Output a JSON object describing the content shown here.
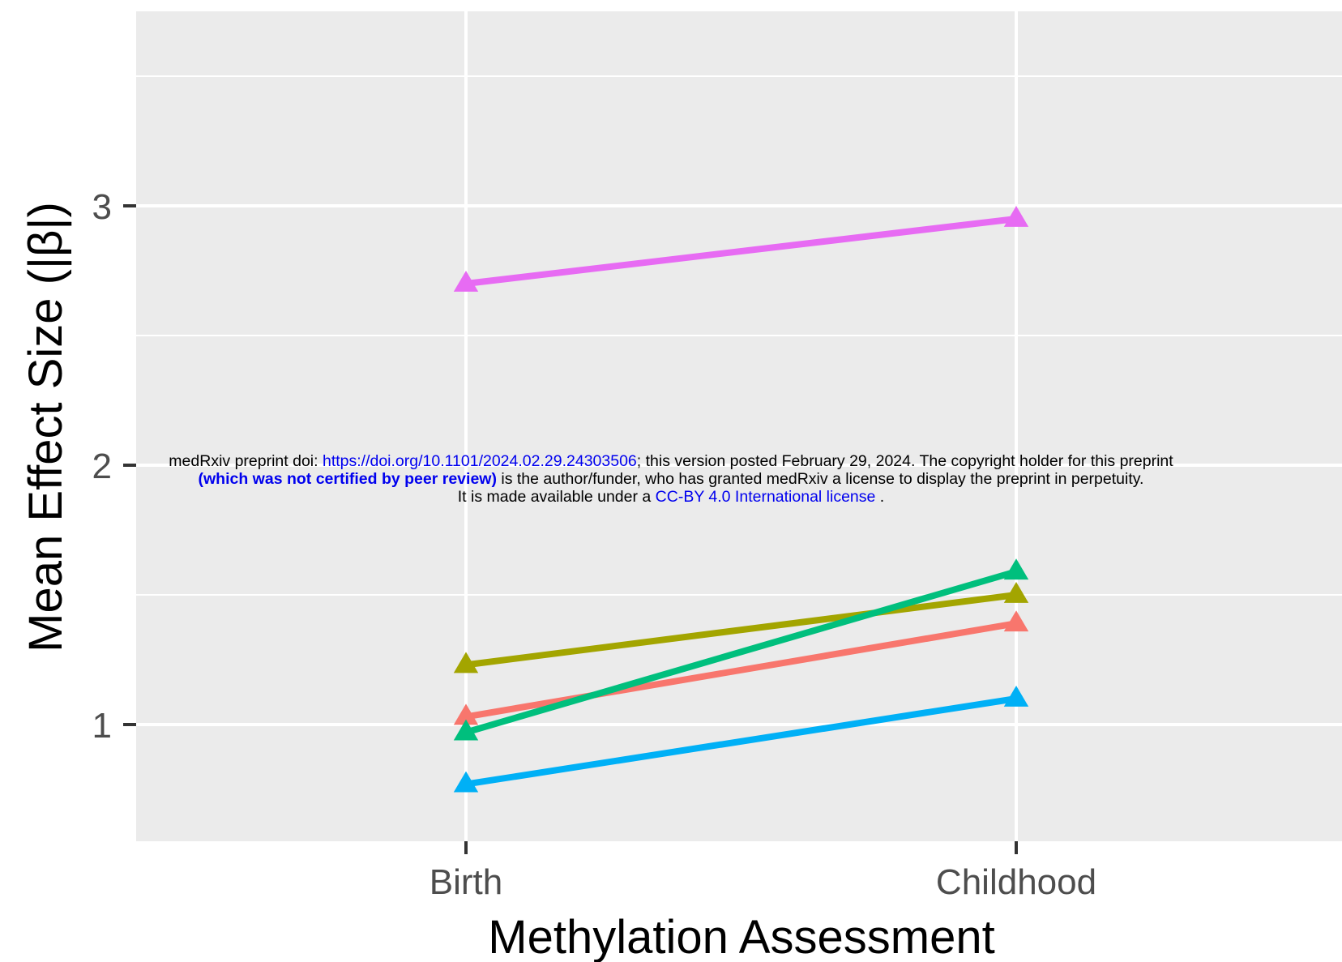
{
  "chart_data": {
    "type": "line",
    "xlabel": "Methylation Assessment",
    "ylabel": "Mean Effect Size (|β|)",
    "categories": [
      "Birth",
      "Childhood"
    ],
    "ylim": [
      0.55,
      3.75
    ],
    "yticks": [
      "1",
      "2",
      "3"
    ],
    "grid": true,
    "legend": "none",
    "series": [
      {
        "color": "#F8766D",
        "values": [
          1.03,
          1.39
        ]
      },
      {
        "color": "#A3A500",
        "values": [
          1.23,
          1.5
        ]
      },
      {
        "color": "#00BF7D",
        "values": [
          0.97,
          1.59
        ]
      },
      {
        "color": "#00B0F6",
        "values": [
          0.77,
          1.1
        ]
      },
      {
        "color": "#E76BF3",
        "values": [
          2.7,
          2.95
        ]
      }
    ]
  },
  "banner": {
    "line1_prefix": "medRxiv preprint doi: ",
    "doi_link": "https://doi.org/10.1101/2024.02.29.24303506",
    "line1_suffix": "; this version posted February 29, 2024. The copyright holder for this preprint",
    "line2_bold": "(which was not certified by peer review)",
    "line2_rest": " is the author/funder, who has granted medRxiv a license to display the preprint in perpetuity.",
    "line3_prefix": "It is made available under a ",
    "license_link": "CC-BY 4.0 International license",
    "line3_suffix": " ."
  }
}
